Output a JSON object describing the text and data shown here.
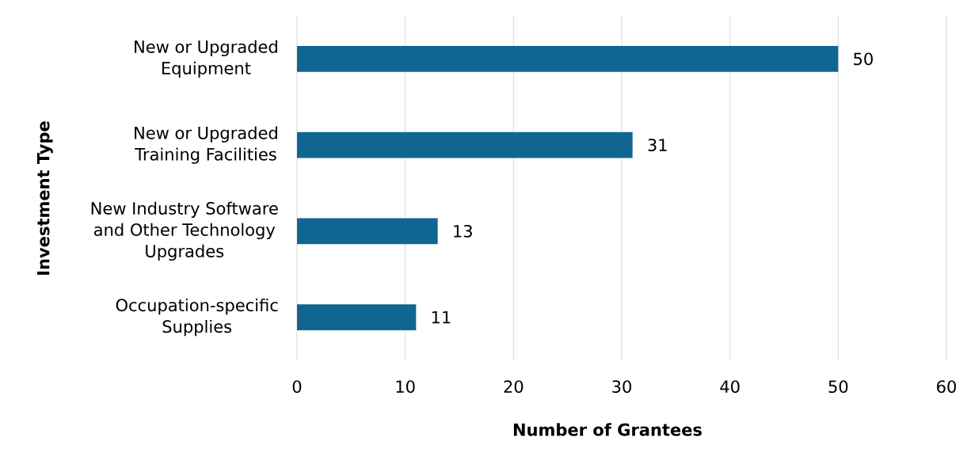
{
  "chart_data": {
    "type": "bar",
    "orientation": "horizontal",
    "xlabel": "Number of Grantees",
    "ylabel": "Investment Type",
    "categories": [
      "New or Upgraded Equipment",
      "New or Upgraded Training Facilities",
      "New Industry Software and Other Technology Upgrades",
      "Occupation-specific Supplies"
    ],
    "values": [
      50,
      31,
      13,
      11
    ],
    "color": "#106690",
    "xlim": [
      0,
      60
    ],
    "xticks": [
      0,
      10,
      20,
      30,
      40,
      50,
      60
    ],
    "grid": "x",
    "data_labels": true
  }
}
